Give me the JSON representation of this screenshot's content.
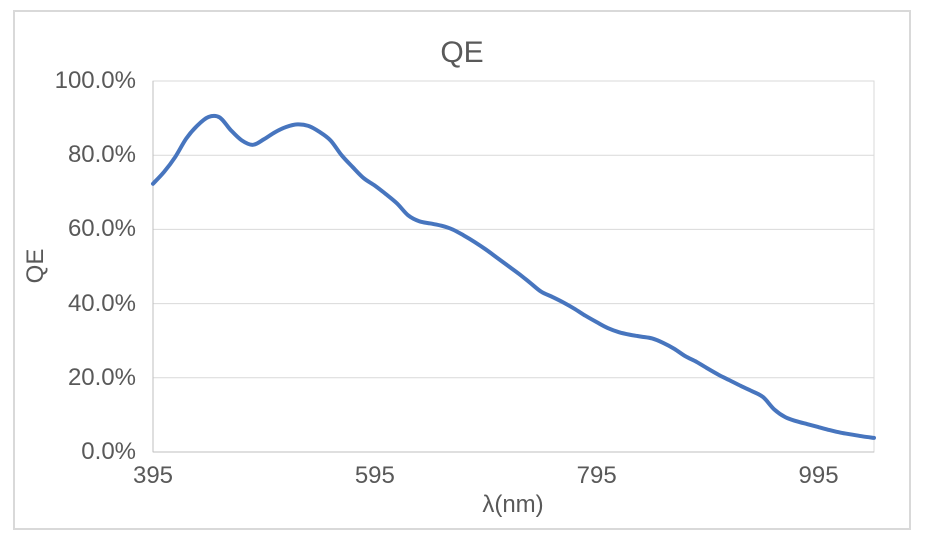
{
  "chart_data": {
    "type": "line",
    "title": "QE",
    "xlabel": "λ(nm)",
    "ylabel": "QE",
    "x_ticks": [
      "395",
      "595",
      "795",
      "995"
    ],
    "x_tick_values": [
      395,
      595,
      795,
      995
    ],
    "y_ticks": [
      "100.0%",
      "80.0%",
      "60.0%",
      "40.0%",
      "20.0%",
      "0.0%"
    ],
    "y_tick_values": [
      100,
      80,
      60,
      40,
      20,
      0
    ],
    "x_range": [
      395,
      1045
    ],
    "ylim": [
      0,
      100
    ],
    "grid": "horizontal",
    "legend": "none",
    "series": [
      {
        "name": "QE",
        "color": "#4775be",
        "smooth": true,
        "x": [
          395,
          405,
          415,
          425,
          435,
          445,
          455,
          465,
          475,
          485,
          495,
          505,
          515,
          525,
          535,
          545,
          555,
          565,
          575,
          585,
          595,
          605,
          615,
          625,
          635,
          645,
          655,
          665,
          675,
          685,
          695,
          705,
          715,
          725,
          735,
          745,
          755,
          765,
          775,
          785,
          795,
          805,
          815,
          825,
          835,
          845,
          855,
          865,
          875,
          885,
          895,
          905,
          915,
          925,
          935,
          945,
          955,
          965,
          975,
          985,
          995,
          1005,
          1015,
          1025,
          1035,
          1045
        ],
        "y_percent": [
          72.3,
          75.5,
          79.5,
          84.5,
          88.0,
          90.3,
          90.2,
          86.8,
          84.0,
          82.8,
          84.3,
          86.2,
          87.6,
          88.3,
          87.9,
          86.3,
          84.0,
          80.0,
          76.8,
          73.8,
          71.8,
          69.5,
          67.0,
          63.8,
          62.2,
          61.6,
          61.0,
          60.0,
          58.4,
          56.6,
          54.6,
          52.4,
          50.2,
          48.0,
          45.6,
          43.2,
          41.8,
          40.3,
          38.6,
          36.7,
          35.0,
          33.4,
          32.3,
          31.6,
          31.1,
          30.6,
          29.4,
          27.8,
          25.8,
          24.3,
          22.5,
          20.8,
          19.3,
          17.8,
          16.4,
          14.8,
          11.5,
          9.4,
          8.3,
          7.5,
          6.7,
          5.9,
          5.2,
          4.7,
          4.2,
          3.8
        ]
      }
    ]
  },
  "style": {
    "line_color": "#4775be",
    "line_width": 4,
    "grid_color": "#d9d9d9",
    "axis_line_color": "#bfbfbf",
    "frame_border_color": "#d9d9d9",
    "text_color": "#595959",
    "background": "#ffffff"
  }
}
